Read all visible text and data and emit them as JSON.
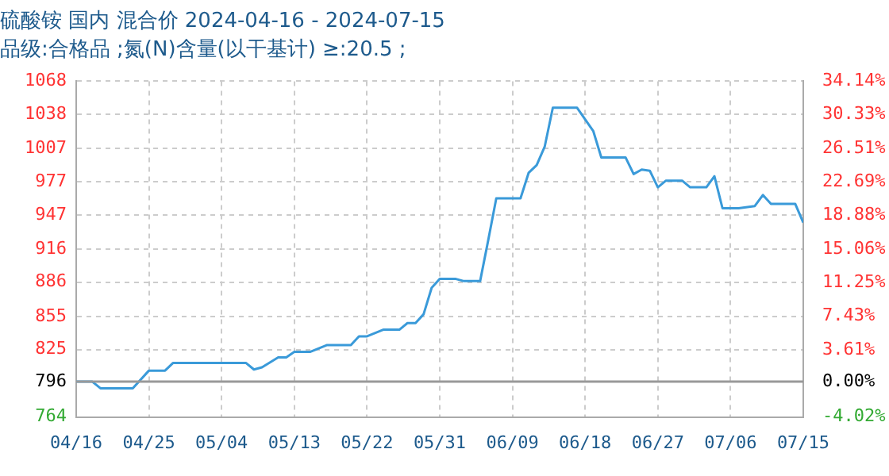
{
  "chart_data": {
    "type": "line",
    "title": "硫酸铵 国内 混合价 2024-04-16 - 2024-07-15",
    "subtitle": "品级:合格品 ;氮(N)含量(以干基计) ≥:20.5 ;",
    "x": [
      "2024-04-16",
      "2024-04-18",
      "2024-04-19",
      "2024-04-23",
      "2024-04-25",
      "2024-04-27",
      "2024-04-28",
      "2024-05-07",
      "2024-05-08",
      "2024-05-09",
      "2024-05-11",
      "2024-05-12",
      "2024-05-13",
      "2024-05-15",
      "2024-05-17",
      "2024-05-20",
      "2024-05-21",
      "2024-05-22",
      "2024-05-24",
      "2024-05-26",
      "2024-05-27",
      "2024-05-28",
      "2024-05-29",
      "2024-05-30",
      "2024-05-31",
      "2024-06-02",
      "2024-06-03",
      "2024-06-05",
      "2024-06-06",
      "2024-06-07",
      "2024-06-10",
      "2024-06-11",
      "2024-06-12",
      "2024-06-13",
      "2024-06-14",
      "2024-06-17",
      "2024-06-19",
      "2024-06-20",
      "2024-06-23",
      "2024-06-24",
      "2024-06-25",
      "2024-06-26",
      "2024-06-27",
      "2024-06-28",
      "2024-06-30",
      "2024-07-01",
      "2024-07-03",
      "2024-07-04",
      "2024-07-05",
      "2024-07-07",
      "2024-07-09",
      "2024-07-10",
      "2024-07-11",
      "2024-07-14",
      "2024-07-15"
    ],
    "series": [
      {
        "color": "#3a9ad9",
        "values": [
          796,
          796,
          790,
          790,
          806,
          806,
          813,
          813,
          807,
          809,
          818,
          818,
          823,
          823,
          829,
          829,
          837,
          837,
          843,
          843,
          849,
          849,
          857,
          881,
          889,
          889,
          887,
          887,
          924,
          962,
          962,
          985,
          992,
          1009,
          1044,
          1044,
          1023,
          999,
          999,
          984,
          988,
          987,
          972,
          978,
          978,
          972,
          972,
          982,
          953,
          953,
          955,
          965,
          957,
          957,
          940
        ]
      }
    ],
    "xlim": [
      "2024-04-16",
      "2024-07-15"
    ],
    "xticks": [
      {
        "value": "2024-04-16",
        "label": "04/16"
      },
      {
        "value": "2024-04-25",
        "label": "04/25"
      },
      {
        "value": "2024-05-04",
        "label": "05/04"
      },
      {
        "value": "2024-05-13",
        "label": "05/13"
      },
      {
        "value": "2024-05-22",
        "label": "05/22"
      },
      {
        "value": "2024-05-31",
        "label": "05/31"
      },
      {
        "value": "2024-06-09",
        "label": "06/09"
      },
      {
        "value": "2024-06-18",
        "label": "06/18"
      },
      {
        "value": "2024-06-27",
        "label": "06/27"
      },
      {
        "value": "2024-07-06",
        "label": "07/06"
      },
      {
        "value": "2024-07-15",
        "label": "07/15"
      }
    ],
    "ylim": [
      764,
      1068
    ],
    "yticks": [
      764,
      796,
      825,
      855,
      886,
      916,
      947,
      977,
      1007,
      1038,
      1068
    ],
    "y2lim": [
      -4.02,
      34.14
    ],
    "y2ticks": [
      {
        "value": -4.02,
        "label": "-4.02%"
      },
      {
        "value": 0,
        "label": "0.00%"
      },
      {
        "value": 3.61,
        "label": "3.61%"
      },
      {
        "value": 7.43,
        "label": "7.43%"
      },
      {
        "value": 11.25,
        "label": "11.25%"
      },
      {
        "value": 15.06,
        "label": "15.06%"
      },
      {
        "value": 18.88,
        "label": "18.88%"
      },
      {
        "value": 22.69,
        "label": "22.69%"
      },
      {
        "value": 26.51,
        "label": "26.51%"
      },
      {
        "value": 30.33,
        "label": "30.33%"
      },
      {
        "value": 34.14,
        "label": "34.14%"
      }
    ],
    "ref_lines": [
      {
        "axis": "y",
        "value": 796,
        "color": "#999999",
        "line_style": "solid"
      }
    ],
    "grid": true,
    "legend": false,
    "marker": "none",
    "line_style": "solid"
  }
}
